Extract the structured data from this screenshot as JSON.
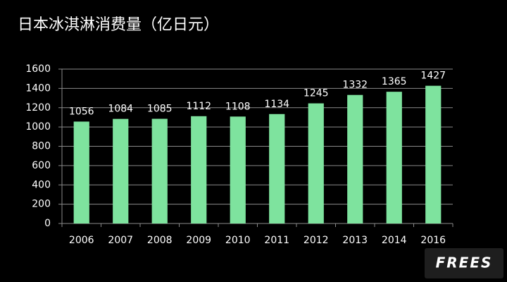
{
  "chart_data": {
    "type": "bar",
    "title": "日本冰淇淋消费量（亿日元）",
    "categories": [
      "2006",
      "2007",
      "2008",
      "2009",
      "2010",
      "2011",
      "2012",
      "2013",
      "2014",
      "2016"
    ],
    "values": [
      1056,
      1084,
      1085,
      1112,
      1108,
      1134,
      1245,
      1332,
      1365,
      1427
    ],
    "color": "#7ee39e",
    "ylim": [
      0,
      1600
    ],
    "yticks": [
      0,
      200,
      400,
      600,
      800,
      1000,
      1200,
      1400,
      1600
    ],
    "grid": true
  },
  "logo": "FREES"
}
